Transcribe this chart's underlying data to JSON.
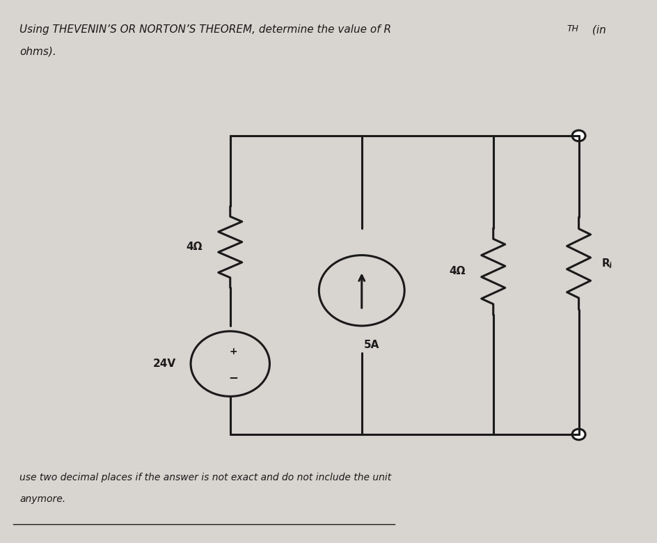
{
  "title_line1": "Using THEVENIN’S OR NORTON’S THEOREM, determine the value of R",
  "title_line1_sub": "TH",
  "title_line1_end": " (in",
  "title_line2": "ohms).",
  "footer_line1": "use two decimal places if the answer is not exact and do not include the unit",
  "footer_line2": "anymore.",
  "background_color": "#d8d4d0",
  "circuit_color": "#1a1a1a",
  "label_4ohm_left": "4Ω",
  "label_4ohm_right": "4Ω",
  "label_5A": "5A",
  "label_24V": "24V",
  "label_RL": "Rⱼ",
  "font_size_title": 11,
  "font_size_labels": 11,
  "font_size_footer": 10
}
